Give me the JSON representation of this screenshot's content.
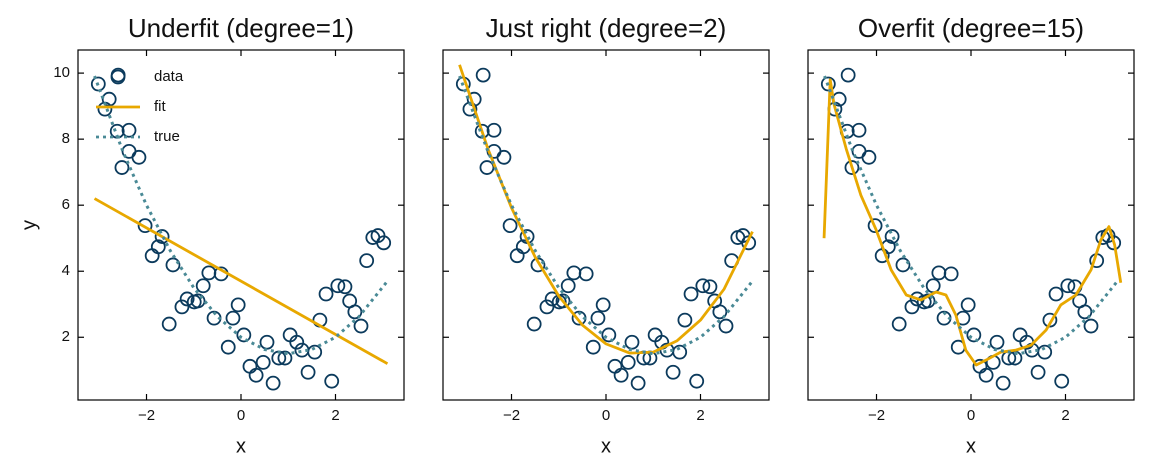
{
  "chart_data": [
    {
      "type": "line",
      "title": "Underfit (degree=1)",
      "xlabel": "x",
      "ylabel": "y",
      "legend": "upper left",
      "show_ytick_labels": true,
      "xlim": [
        -3.45,
        3.45
      ],
      "ylim": [
        0.1,
        10.7
      ],
      "xticks": [
        -2,
        0,
        2
      ],
      "yticks": [
        2,
        4,
        6,
        8,
        10
      ],
      "series": [
        {
          "name": "data",
          "style": "markers",
          "color": "#0b3a5c",
          "x": [
            -3.02,
            -2.6,
            -2.88,
            -2.79,
            -2.62,
            -2.37,
            -2.52,
            -2.37,
            -2.16,
            -2.03,
            -1.88,
            -1.75,
            -1.67,
            -1.52,
            -1.44,
            -1.25,
            -1.14,
            -0.99,
            -0.91,
            -0.8,
            -0.68,
            -0.57,
            -0.42,
            -0.27,
            -0.17,
            -0.06,
            0.06,
            0.19,
            0.32,
            0.47,
            0.55,
            0.68,
            0.8,
            0.93,
            1.04,
            1.18,
            1.29,
            1.42,
            1.56,
            1.67,
            1.8,
            1.92,
            2.05,
            2.2,
            2.3,
            2.41,
            2.54,
            2.66,
            2.79,
            2.9,
            3.02
          ],
          "values": [
            9.67,
            9.94,
            8.91,
            9.21,
            8.24,
            8.27,
            7.14,
            7.63,
            7.45,
            5.38,
            4.47,
            4.74,
            5.05,
            2.4,
            4.19,
            2.92,
            3.16,
            3.07,
            3.1,
            3.56,
            3.95,
            2.58,
            3.92,
            1.7,
            2.58,
            2.98,
            2.07,
            1.12,
            0.85,
            1.24,
            1.85,
            0.61,
            1.37,
            1.37,
            2.07,
            1.85,
            1.61,
            0.94,
            1.55,
            2.52,
            3.31,
            0.67,
            3.56,
            3.53,
            3.1,
            2.77,
            2.34,
            4.32,
            5.02,
            5.08,
            4.86
          ]
        },
        {
          "name": "fit",
          "style": "solid",
          "color": "#e8a800",
          "x": [
            -3.1,
            3.1
          ],
          "values": [
            6.2,
            1.2
          ]
        },
        {
          "name": "true",
          "style": "dotted",
          "color": "#4a8a96",
          "x": [
            -3.1,
            -2.5,
            -2,
            -1.5,
            -1,
            -0.5,
            0,
            0.5,
            1,
            1.5,
            2,
            2.5,
            3.1
          ],
          "values": [
            9.91,
            7.63,
            6,
            4.63,
            3.5,
            2.63,
            2,
            1.63,
            1.5,
            1.63,
            2,
            2.63,
            3.7
          ]
        }
      ]
    },
    {
      "type": "line",
      "title": "Just right (degree=2)",
      "xlabel": "x",
      "show_ytick_labels": false,
      "xlim": [
        -3.45,
        3.45
      ],
      "ylim": [
        0.1,
        10.7
      ],
      "xticks": [
        -2,
        0,
        2
      ],
      "yticks": [
        2,
        4,
        6,
        8,
        10
      ],
      "series": [
        {
          "name": "data",
          "style": "markers",
          "color": "#0b3a5c",
          "x": [
            -3.02,
            -2.6,
            -2.88,
            -2.79,
            -2.62,
            -2.37,
            -2.52,
            -2.37,
            -2.16,
            -2.03,
            -1.88,
            -1.75,
            -1.67,
            -1.52,
            -1.44,
            -1.25,
            -1.14,
            -0.99,
            -0.91,
            -0.8,
            -0.68,
            -0.57,
            -0.42,
            -0.27,
            -0.17,
            -0.06,
            0.06,
            0.19,
            0.32,
            0.47,
            0.55,
            0.68,
            0.8,
            0.93,
            1.04,
            1.18,
            1.29,
            1.42,
            1.56,
            1.67,
            1.8,
            1.92,
            2.05,
            2.2,
            2.3,
            2.41,
            2.54,
            2.66,
            2.79,
            2.9,
            3.02
          ],
          "values": [
            9.67,
            9.94,
            8.91,
            9.21,
            8.24,
            8.27,
            7.14,
            7.63,
            7.45,
            5.38,
            4.47,
            4.74,
            5.05,
            2.4,
            4.19,
            2.92,
            3.16,
            3.07,
            3.1,
            3.56,
            3.95,
            2.58,
            3.92,
            1.7,
            2.58,
            2.98,
            2.07,
            1.12,
            0.85,
            1.24,
            1.85,
            0.61,
            1.37,
            1.37,
            2.07,
            1.85,
            1.61,
            0.94,
            1.55,
            2.52,
            3.31,
            0.67,
            3.56,
            3.53,
            3.1,
            2.77,
            2.34,
            4.32,
            5.02,
            5.08,
            4.86
          ]
        },
        {
          "name": "fit",
          "style": "solid",
          "color": "#e8a800",
          "x": [
            -3.1,
            -2.5,
            -2,
            -1.5,
            -1,
            -0.5,
            0,
            0.5,
            1,
            1.5,
            2,
            2.5,
            3.1
          ],
          "values": [
            10.25,
            7.71,
            5.92,
            4.43,
            3.25,
            2.37,
            1.8,
            1.52,
            1.55,
            1.89,
            2.52,
            3.46,
            5.2
          ]
        },
        {
          "name": "true",
          "style": "dotted",
          "color": "#4a8a96",
          "x": [
            -3.1,
            -2.5,
            -2,
            -1.5,
            -1,
            -0.5,
            0,
            0.5,
            1,
            1.5,
            2,
            2.5,
            3.1
          ],
          "values": [
            9.91,
            7.63,
            6,
            4.63,
            3.5,
            2.63,
            2,
            1.63,
            1.5,
            1.63,
            2,
            2.63,
            3.7
          ]
        }
      ]
    },
    {
      "type": "line",
      "title": "Overfit (degree=15)",
      "xlabel": "x",
      "show_ytick_labels": false,
      "xlim": [
        -3.45,
        3.45
      ],
      "ylim": [
        0.1,
        10.7
      ],
      "xticks": [
        -2,
        0,
        2
      ],
      "yticks": [
        2,
        4,
        6,
        8,
        10
      ],
      "series": [
        {
          "name": "data",
          "style": "markers",
          "color": "#0b3a5c",
          "x": [
            -3.02,
            -2.6,
            -2.88,
            -2.79,
            -2.62,
            -2.37,
            -2.52,
            -2.37,
            -2.16,
            -2.03,
            -1.88,
            -1.75,
            -1.67,
            -1.52,
            -1.44,
            -1.25,
            -1.14,
            -0.99,
            -0.91,
            -0.8,
            -0.68,
            -0.57,
            -0.42,
            -0.27,
            -0.17,
            -0.06,
            0.06,
            0.19,
            0.32,
            0.47,
            0.55,
            0.68,
            0.8,
            0.93,
            1.04,
            1.18,
            1.29,
            1.42,
            1.56,
            1.67,
            1.8,
            1.92,
            2.05,
            2.2,
            2.3,
            2.41,
            2.54,
            2.66,
            2.79,
            2.9,
            3.02
          ],
          "values": [
            9.67,
            9.94,
            8.91,
            9.21,
            8.24,
            8.27,
            7.14,
            7.63,
            7.45,
            5.38,
            4.47,
            4.74,
            5.05,
            2.4,
            4.19,
            2.92,
            3.16,
            3.07,
            3.1,
            3.56,
            3.95,
            2.58,
            3.92,
            1.7,
            2.58,
            2.98,
            2.07,
            1.12,
            0.85,
            1.24,
            1.85,
            0.61,
            1.37,
            1.37,
            2.07,
            1.85,
            1.61,
            0.94,
            1.55,
            2.52,
            3.31,
            0.67,
            3.56,
            3.53,
            3.1,
            2.77,
            2.34,
            4.32,
            5.02,
            5.08,
            4.86
          ]
        },
        {
          "name": "fit",
          "style": "solid",
          "color": "#e8a800",
          "x": [
            -3.11,
            -2.98,
            -2.9,
            -2.64,
            -2.33,
            -2.01,
            -1.69,
            -1.37,
            -1.06,
            -0.74,
            -0.53,
            -0.32,
            -0.11,
            0.11,
            0.32,
            0.63,
            0.95,
            1.27,
            1.59,
            1.9,
            2.22,
            2.54,
            2.75,
            2.92,
            3.04,
            3.17
          ],
          "values": [
            5.0,
            9.8,
            9.06,
            7.7,
            6.3,
            5.26,
            4.04,
            3.28,
            3.13,
            3.37,
            3.28,
            2.67,
            1.61,
            1.16,
            1.31,
            1.55,
            1.61,
            1.76,
            2.22,
            2.98,
            3.28,
            4.04,
            4.95,
            5.35,
            4.8,
            3.65
          ]
        },
        {
          "name": "true",
          "style": "dotted",
          "color": "#4a8a96",
          "x": [
            -3.1,
            -2.5,
            -2,
            -1.5,
            -1,
            -0.5,
            0,
            0.5,
            1,
            1.5,
            2,
            2.5,
            3.1
          ],
          "values": [
            9.91,
            7.63,
            6,
            4.63,
            3.5,
            2.63,
            2,
            1.63,
            1.5,
            1.63,
            2,
            2.63,
            3.7
          ]
        }
      ]
    }
  ]
}
